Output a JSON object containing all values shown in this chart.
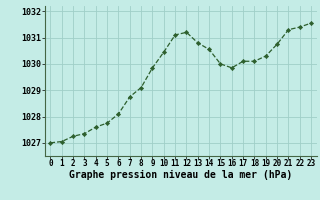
{
  "x": [
    0,
    1,
    2,
    3,
    4,
    5,
    6,
    7,
    8,
    9,
    10,
    11,
    12,
    13,
    14,
    15,
    16,
    17,
    18,
    19,
    20,
    21,
    22,
    23
  ],
  "y": [
    1027.0,
    1027.05,
    1027.25,
    1027.35,
    1027.6,
    1027.75,
    1028.1,
    1028.75,
    1029.1,
    1029.85,
    1030.45,
    1031.1,
    1031.2,
    1030.8,
    1030.55,
    1030.0,
    1029.85,
    1030.1,
    1030.1,
    1030.3,
    1030.75,
    1031.3,
    1031.4,
    1031.55
  ],
  "xlabel": "Graphe pression niveau de la mer (hPa)",
  "background_color": "#c4ece6",
  "grid_color": "#a0cfc8",
  "line_color": "#2d5f2d",
  "marker_color": "#2d5f2d",
  "ylim": [
    1026.5,
    1032.2
  ],
  "xlim": [
    -0.5,
    23.5
  ],
  "yticks": [
    1027,
    1028,
    1029,
    1030,
    1031,
    1032
  ],
  "xticks": [
    0,
    1,
    2,
    3,
    4,
    5,
    6,
    7,
    8,
    9,
    10,
    11,
    12,
    13,
    14,
    15,
    16,
    17,
    18,
    19,
    20,
    21,
    22,
    23
  ],
  "xlabel_fontsize": 7.0,
  "xtick_fontsize": 5.5,
  "ytick_fontsize": 6.0
}
